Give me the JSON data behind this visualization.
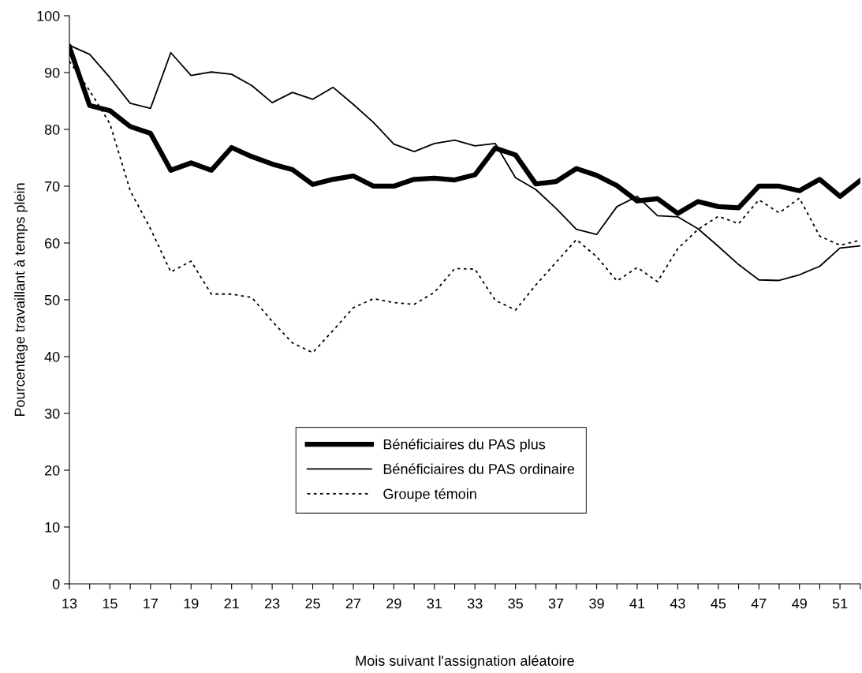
{
  "chart_data": {
    "type": "line",
    "xlabel": "Mois suivant l'assignation aléatoire",
    "ylabel": "Pourcentage travaillant à temps plein",
    "x": [
      13,
      14,
      15,
      16,
      17,
      18,
      19,
      20,
      21,
      22,
      23,
      24,
      25,
      26,
      27,
      28,
      29,
      30,
      31,
      32,
      33,
      34,
      35,
      36,
      37,
      38,
      39,
      40,
      41,
      42,
      43,
      44,
      45,
      46,
      47,
      48,
      49,
      50,
      51,
      52
    ],
    "series": [
      {
        "name": "Bénéficiaires du PAS plus",
        "color": "#000000",
        "line_style": "solid",
        "values": [
          94.5,
          84.2,
          83.3,
          80.5,
          79.3,
          72.8,
          74.1,
          72.8,
          76.8,
          75.2,
          73.9,
          72.9,
          70.3,
          71.2,
          71.8,
          70.0,
          70.0,
          71.2,
          71.4,
          71.1,
          72.0,
          76.7,
          75.5,
          70.4,
          70.8,
          73.1,
          71.9,
          70.1,
          67.4,
          67.8,
          65.2,
          67.3,
          66.4,
          66.2,
          70.0,
          70.0,
          69.2,
          71.2,
          68.2,
          71.0
        ]
      },
      {
        "name": "Bénéficiaires du PAS ordinaire",
        "color": "#000000",
        "line_style": "solid",
        "values": [
          94.8,
          93.2,
          89.1,
          84.6,
          83.7,
          93.5,
          89.5,
          90.1,
          89.7,
          87.7,
          84.7,
          86.5,
          85.3,
          87.4,
          84.4,
          81.2,
          77.4,
          76.1,
          77.5,
          78.1,
          77.1,
          77.5,
          71.5,
          69.4,
          66.1,
          62.4,
          61.5,
          66.4,
          68.2,
          64.8,
          64.6,
          62.5,
          59.4,
          56.2,
          53.5,
          53.4,
          54.4,
          55.9,
          59.1,
          59.5
        ]
      },
      {
        "name": "Groupe témoin",
        "color": "#000000",
        "line_style": "dotted",
        "values": [
          92.0,
          86.8,
          81.0,
          69.2,
          62.5,
          54.9,
          56.8,
          51.0,
          51.0,
          50.4,
          46.2,
          42.4,
          40.7,
          44.6,
          48.6,
          50.2,
          49.5,
          49.2,
          51.3,
          55.5,
          55.4,
          49.9,
          48.2,
          52.6,
          56.6,
          60.6,
          57.6,
          53.3,
          55.7,
          53.2,
          59.0,
          62.4,
          64.7,
          63.4,
          67.6,
          65.3,
          67.9,
          61.2,
          59.6,
          60.5
        ]
      }
    ],
    "xlim": [
      13,
      52
    ],
    "xticks": [
      13,
      15,
      17,
      19,
      21,
      23,
      25,
      27,
      29,
      31,
      33,
      35,
      37,
      39,
      41,
      43,
      45,
      47,
      49,
      51
    ],
    "ylim": [
      0,
      100
    ],
    "yticks": [
      0,
      10,
      20,
      30,
      40,
      50,
      60,
      70,
      80,
      90,
      100
    ],
    "grid": false,
    "legend": "bottom",
    "marker": "none"
  }
}
